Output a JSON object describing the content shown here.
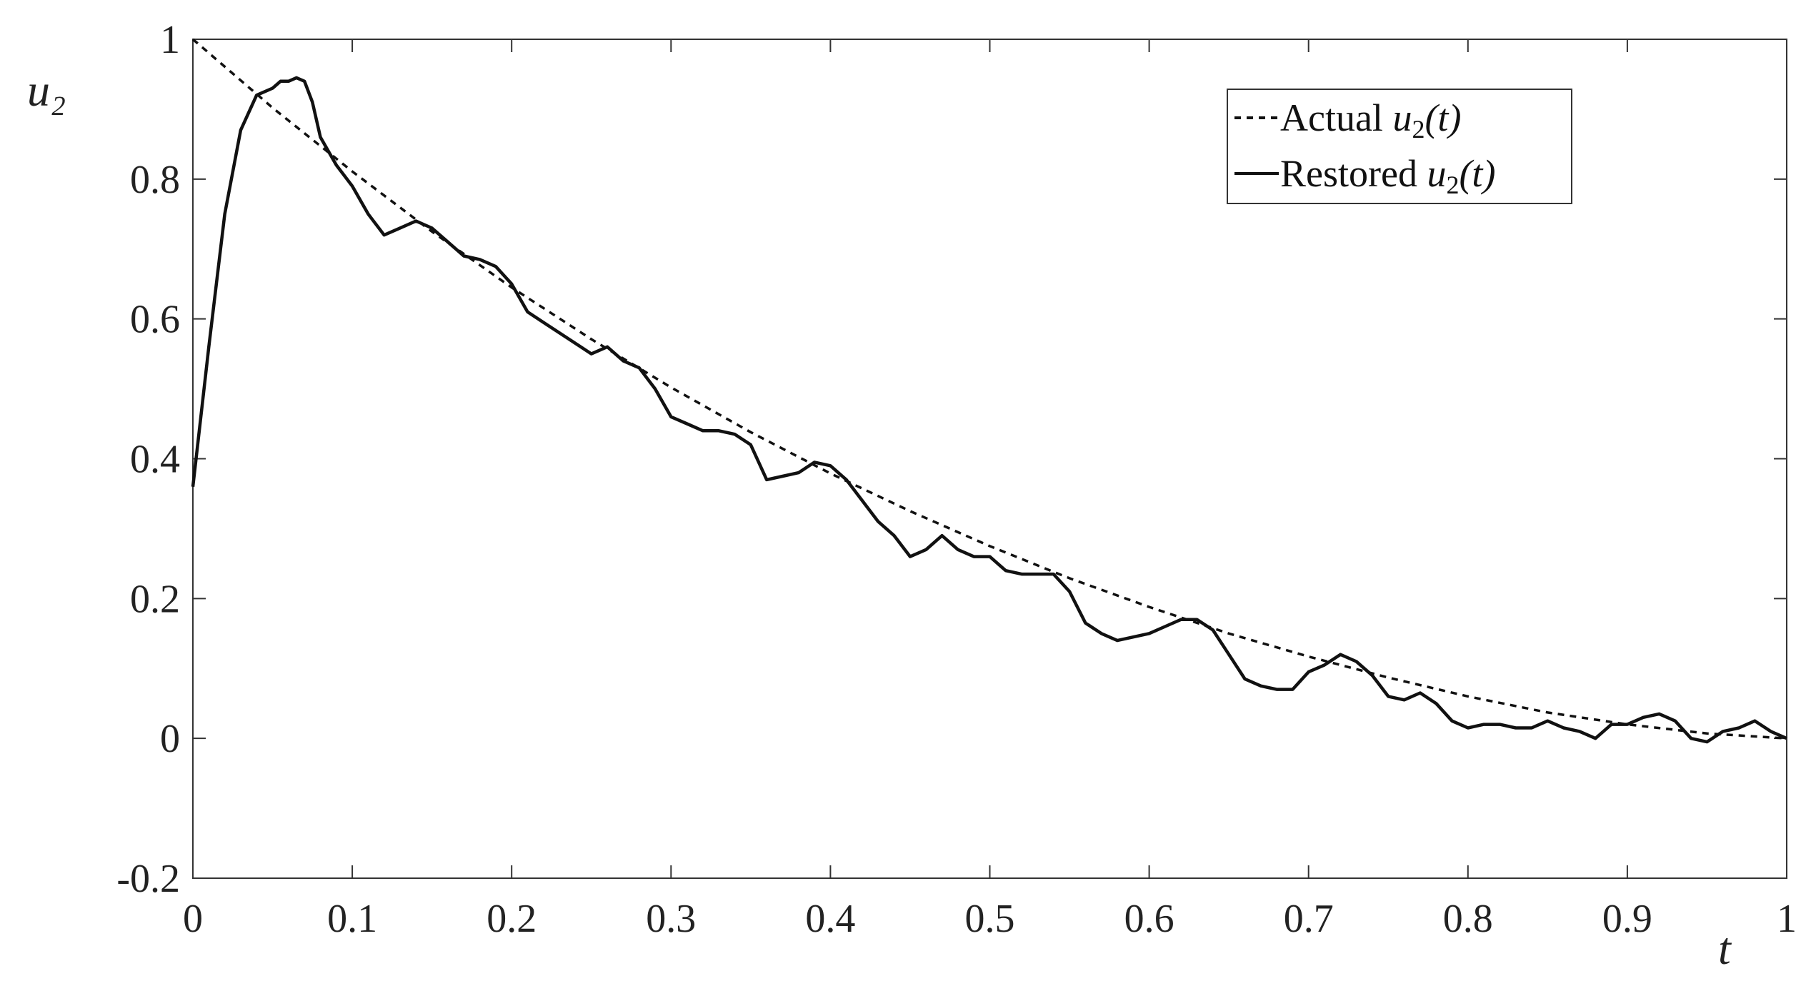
{
  "chart_data": {
    "type": "line",
    "xlabel": "t",
    "ylabel": "u₂",
    "xlim": [
      0,
      1
    ],
    "ylim": [
      -0.2,
      1
    ],
    "x_ticks": [
      "0",
      "0.1",
      "0.2",
      "0.3",
      "0.4",
      "0.5",
      "0.6",
      "0.7",
      "0.8",
      "0.9",
      "1"
    ],
    "y_ticks": [
      "-0.2",
      "0",
      "0.2",
      "0.4",
      "0.6",
      "0.8",
      "1"
    ],
    "grid": false,
    "legend_position": "top-right",
    "legend": [
      {
        "text_prefix": "Actual ",
        "symbol": "u",
        "subscript": "2",
        "suffix": "(t)",
        "style": "dashed"
      },
      {
        "text_prefix": "Restored ",
        "symbol": "u",
        "subscript": "2",
        "suffix": "(t)",
        "style": "solid"
      }
    ],
    "series": [
      {
        "name": "Actual u2(t)",
        "style": "dashed",
        "x": [
          0,
          0.05,
          0.1,
          0.15,
          0.2,
          0.25,
          0.3,
          0.35,
          0.4,
          0.45,
          0.5,
          0.55,
          0.6,
          0.65,
          0.7,
          0.75,
          0.8,
          0.85,
          0.9,
          0.95,
          1
        ],
        "y": [
          1.0,
          0.902,
          0.811,
          0.725,
          0.645,
          0.571,
          0.502,
          0.438,
          0.379,
          0.325,
          0.275,
          0.229,
          0.188,
          0.15,
          0.117,
          0.087,
          0.06,
          0.037,
          0.02,
          0.007,
          0.0
        ]
      },
      {
        "name": "Restored u2(t)",
        "style": "solid",
        "x": [
          0,
          0.01,
          0.02,
          0.03,
          0.04,
          0.05,
          0.055,
          0.06,
          0.065,
          0.07,
          0.075,
          0.08,
          0.09,
          0.1,
          0.11,
          0.12,
          0.13,
          0.14,
          0.145,
          0.15,
          0.16,
          0.17,
          0.18,
          0.19,
          0.2,
          0.21,
          0.22,
          0.23,
          0.24,
          0.25,
          0.26,
          0.27,
          0.28,
          0.29,
          0.3,
          0.31,
          0.32,
          0.33,
          0.34,
          0.35,
          0.36,
          0.37,
          0.38,
          0.39,
          0.4,
          0.41,
          0.42,
          0.43,
          0.44,
          0.45,
          0.46,
          0.47,
          0.48,
          0.49,
          0.5,
          0.51,
          0.52,
          0.53,
          0.54,
          0.55,
          0.56,
          0.57,
          0.58,
          0.59,
          0.6,
          0.61,
          0.62,
          0.63,
          0.64,
          0.65,
          0.66,
          0.67,
          0.68,
          0.69,
          0.7,
          0.71,
          0.72,
          0.73,
          0.74,
          0.75,
          0.76,
          0.77,
          0.78,
          0.79,
          0.8,
          0.81,
          0.82,
          0.83,
          0.84,
          0.85,
          0.86,
          0.87,
          0.88,
          0.89,
          0.9,
          0.91,
          0.92,
          0.93,
          0.94,
          0.95,
          0.96,
          0.97,
          0.98,
          0.99,
          1.0
        ],
        "y": [
          0.36,
          0.56,
          0.75,
          0.87,
          0.92,
          0.93,
          0.94,
          0.94,
          0.945,
          0.94,
          0.91,
          0.86,
          0.82,
          0.79,
          0.75,
          0.72,
          0.73,
          0.74,
          0.735,
          0.73,
          0.71,
          0.69,
          0.685,
          0.675,
          0.65,
          0.61,
          0.595,
          0.58,
          0.565,
          0.55,
          0.56,
          0.54,
          0.53,
          0.5,
          0.46,
          0.45,
          0.44,
          0.44,
          0.435,
          0.42,
          0.37,
          0.375,
          0.38,
          0.395,
          0.39,
          0.37,
          0.34,
          0.31,
          0.29,
          0.26,
          0.27,
          0.29,
          0.27,
          0.26,
          0.26,
          0.24,
          0.235,
          0.235,
          0.235,
          0.21,
          0.165,
          0.15,
          0.14,
          0.145,
          0.15,
          0.16,
          0.17,
          0.17,
          0.155,
          0.12,
          0.085,
          0.075,
          0.07,
          0.07,
          0.095,
          0.105,
          0.12,
          0.11,
          0.09,
          0.06,
          0.055,
          0.065,
          0.05,
          0.025,
          0.015,
          0.02,
          0.02,
          0.015,
          0.015,
          0.025,
          0.015,
          0.01,
          0.0,
          0.02,
          0.02,
          0.03,
          0.035,
          0.025,
          0.0,
          -0.005,
          0.01,
          0.015,
          0.025,
          0.01,
          0.0
        ]
      }
    ]
  }
}
